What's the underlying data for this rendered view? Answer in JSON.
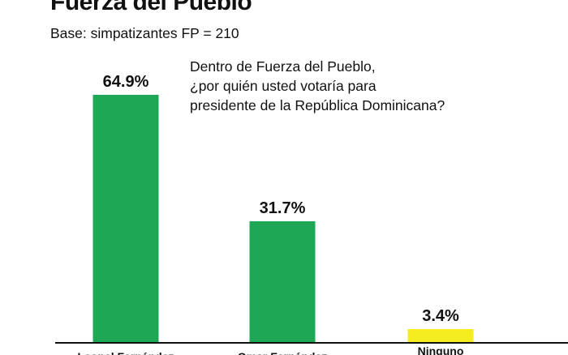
{
  "header": {
    "title": "Fuerza del Pueblo",
    "subtitle": "Base: simpatizantes FP = 210"
  },
  "question": [
    "Dentro de Fuerza del Pueblo,",
    "¿por quién usted votaría para",
    "presidente de la República Dominicana?"
  ],
  "chart_data": {
    "type": "bar",
    "categories": [
      "Leonel Fernández",
      "Omar Fernández",
      "Ninguno"
    ],
    "values": [
      64.9,
      31.7,
      3.4
    ],
    "value_labels": [
      "64.9%",
      "31.7%",
      "3.4%"
    ],
    "colors": [
      "#1ea855",
      "#1ea855",
      "#f5ec1f"
    ],
    "ylim": [
      0,
      100
    ],
    "grid": false,
    "legend": "none"
  },
  "colors": {
    "axis": "#111111"
  }
}
